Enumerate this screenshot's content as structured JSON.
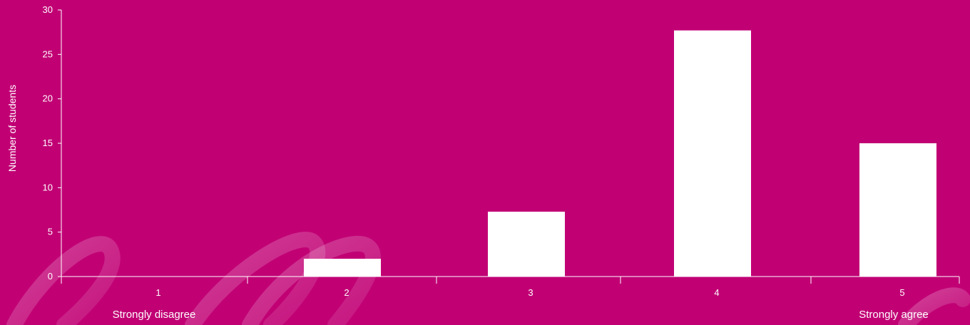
{
  "chart_data": {
    "type": "bar",
    "categories": [
      "1",
      "2",
      "3",
      "4",
      "5"
    ],
    "values": [
      0,
      2,
      7.3,
      27.7,
      15
    ],
    "ylabel": "Number of students",
    "ylim": [
      0,
      30
    ],
    "yticks": [
      0,
      5,
      10,
      15,
      20,
      25,
      30
    ],
    "scale_anchors": {
      "low": "Strongly disagree",
      "high": "Strongly agree"
    },
    "grid": false
  },
  "colors": {
    "background": "#c10074",
    "bar": "#ffffff",
    "axis": "#ffffff"
  }
}
